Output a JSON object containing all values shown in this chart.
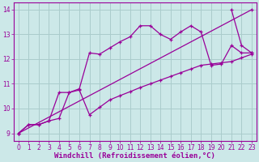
{
  "background_color": "#cce8e8",
  "grid_color": "#aacccc",
  "line_color": "#990099",
  "marker": "+",
  "xlabel": "Windchill (Refroidissement éolien,°C)",
  "xlabel_color": "#990099",
  "xlim": [
    -0.5,
    23.5
  ],
  "ylim": [
    8.7,
    14.3
  ],
  "yticks": [
    9,
    10,
    11,
    12,
    13,
    14
  ],
  "xticks": [
    0,
    1,
    2,
    3,
    4,
    5,
    6,
    7,
    8,
    9,
    10,
    11,
    12,
    13,
    14,
    15,
    16,
    17,
    18,
    19,
    20,
    21,
    22,
    23
  ],
  "series1_x": [
    0,
    1,
    2,
    3,
    4,
    5,
    6,
    7,
    8,
    9,
    10,
    11,
    12,
    13,
    14,
    15,
    16,
    17,
    18,
    19,
    20,
    21,
    22,
    23
  ],
  "series1_y": [
    9.0,
    9.35,
    9.35,
    9.5,
    10.65,
    10.65,
    10.8,
    12.25,
    12.2,
    12.45,
    12.7,
    12.9,
    13.35,
    13.35,
    13.0,
    12.8,
    13.1,
    13.35,
    13.1,
    11.75,
    11.8,
    12.55,
    12.25,
    12.25
  ],
  "series2_x": [
    0,
    1,
    2,
    3,
    4,
    5,
    6,
    7,
    8,
    9,
    10,
    11,
    12,
    13,
    14,
    15,
    16,
    17,
    18,
    19,
    20,
    21,
    22,
    23
  ],
  "series2_y": [
    9.0,
    9.35,
    9.35,
    9.5,
    9.6,
    10.65,
    10.75,
    9.75,
    10.05,
    10.35,
    10.52,
    10.68,
    10.85,
    11.0,
    11.15,
    11.3,
    11.45,
    11.6,
    11.75,
    11.8,
    11.85,
    11.9,
    12.05,
    12.2
  ],
  "series3_x": [
    0,
    23
  ],
  "series3_y": [
    9.0,
    14.0
  ],
  "series4_x": [
    21,
    22,
    23
  ],
  "series4_y": [
    14.0,
    12.55,
    12.25
  ],
  "tick_fontsize": 5.5,
  "xlabel_fontsize": 6.5
}
